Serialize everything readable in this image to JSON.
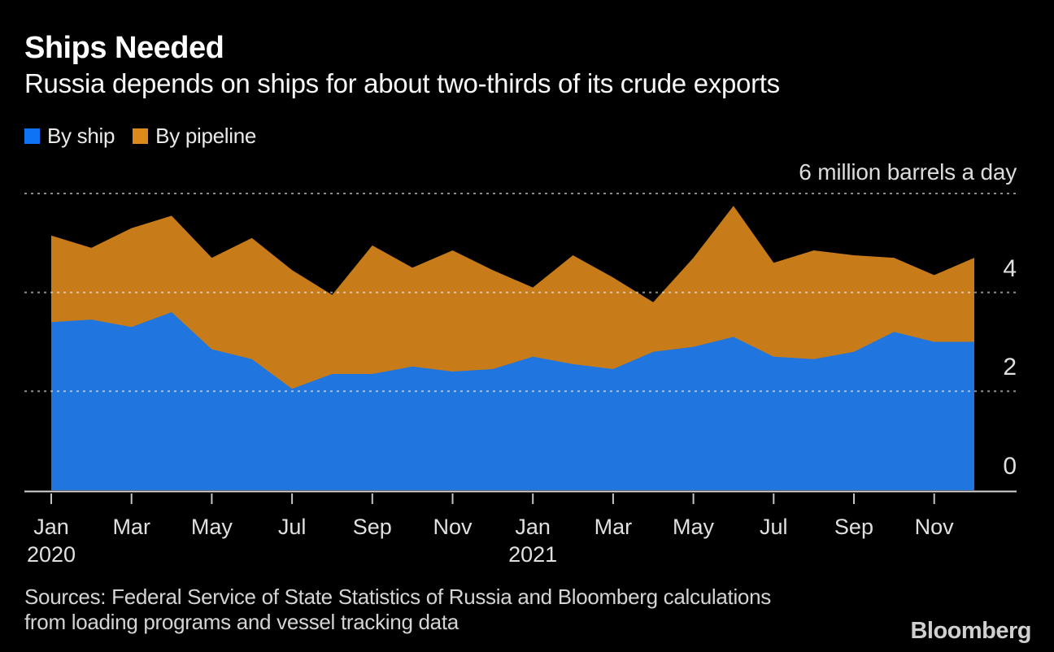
{
  "header": {
    "title": "Ships Needed",
    "subtitle": "Russia depends on ships for about two-thirds of its crude exports"
  },
  "legend": [
    {
      "label": "By ship",
      "color": "#0e74f5"
    },
    {
      "label": "By pipeline",
      "color": "#dd8a1c"
    }
  ],
  "chart_data": {
    "type": "area",
    "stacked": true,
    "title": "Ships Needed",
    "unit_label": "6 million barrels a day",
    "ylabel": "million barrels a day",
    "ylim": [
      0,
      6
    ],
    "grid_values": [
      2,
      4,
      6
    ],
    "y_tick_labels": [
      {
        "label": "4",
        "value": 4
      },
      {
        "label": "2",
        "value": 2
      },
      {
        "label": "0",
        "value": 0
      }
    ],
    "x": [
      "Jan 2020",
      "Feb 2020",
      "Mar 2020",
      "Apr 2020",
      "May 2020",
      "Jun 2020",
      "Jul 2020",
      "Aug 2020",
      "Sep 2020",
      "Oct 2020",
      "Nov 2020",
      "Dec 2020",
      "Jan 2021",
      "Feb 2021",
      "Mar 2021",
      "Apr 2021",
      "May 2021",
      "Jun 2021",
      "Jul 2021",
      "Aug 2021",
      "Sep 2021",
      "Oct 2021",
      "Nov 2021",
      "Dec 2021"
    ],
    "x_ticks": [
      {
        "index": 0,
        "label": "Jan",
        "year": "2020"
      },
      {
        "index": 2,
        "label": "Mar"
      },
      {
        "index": 4,
        "label": "May"
      },
      {
        "index": 6,
        "label": "Jul"
      },
      {
        "index": 8,
        "label": "Sep"
      },
      {
        "index": 10,
        "label": "Nov"
      },
      {
        "index": 12,
        "label": "Jan",
        "year": "2021"
      },
      {
        "index": 14,
        "label": "Mar"
      },
      {
        "index": 16,
        "label": "May"
      },
      {
        "index": 18,
        "label": "Jul"
      },
      {
        "index": 20,
        "label": "Sep"
      },
      {
        "index": 22,
        "label": "Nov"
      }
    ],
    "series": [
      {
        "name": "By ship",
        "color": "#0e74f5",
        "values": [
          3.4,
          3.45,
          3.3,
          3.6,
          2.85,
          2.65,
          2.05,
          2.35,
          2.35,
          2.5,
          2.4,
          2.45,
          2.7,
          2.55,
          2.45,
          2.8,
          2.9,
          3.1,
          2.7,
          2.65,
          2.8,
          3.2,
          3.0,
          3.0
        ]
      },
      {
        "name": "By pipeline",
        "color": "#dd8a1c",
        "values": [
          1.75,
          1.45,
          2.0,
          1.95,
          1.85,
          2.45,
          2.4,
          1.6,
          2.6,
          2.0,
          2.45,
          2.0,
          1.4,
          2.2,
          1.85,
          1.0,
          1.8,
          2.65,
          1.9,
          2.2,
          1.95,
          1.5,
          1.35,
          1.7
        ]
      }
    ],
    "legend_position": "top-left",
    "grid": "dashed-horizontal"
  },
  "footer": {
    "sources": "Sources: Federal Service of State Statistics of Russia and Bloomberg calculations\nfrom loading programs and vessel tracking data",
    "logo": "Bloomberg"
  }
}
